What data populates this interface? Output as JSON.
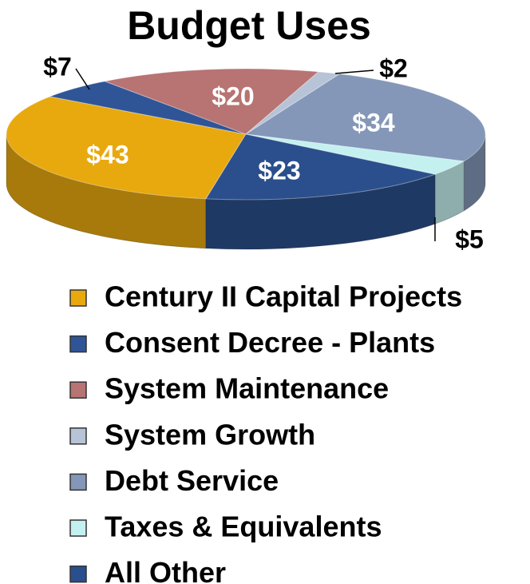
{
  "chart_data": {
    "type": "pie3d",
    "title": "Budget Uses",
    "categories": [
      "Century II Capital Projects",
      "Consent Decree - Plants",
      "System Maintenance",
      "System Growth",
      "Debt Service",
      "Taxes & Equivalents",
      "All Other"
    ],
    "values": [
      43,
      7,
      20,
      2,
      34,
      5,
      23
    ],
    "value_labels": [
      "$43",
      "$7",
      "$20",
      "$2",
      "$34",
      "$5",
      "$23"
    ],
    "colors": [
      "#e8a90f",
      "#2f5597",
      "#b87373",
      "#b7c3d6",
      "#8497b8",
      "#c5f0f0",
      "#2b4f8c"
    ],
    "legend": "bottom"
  }
}
